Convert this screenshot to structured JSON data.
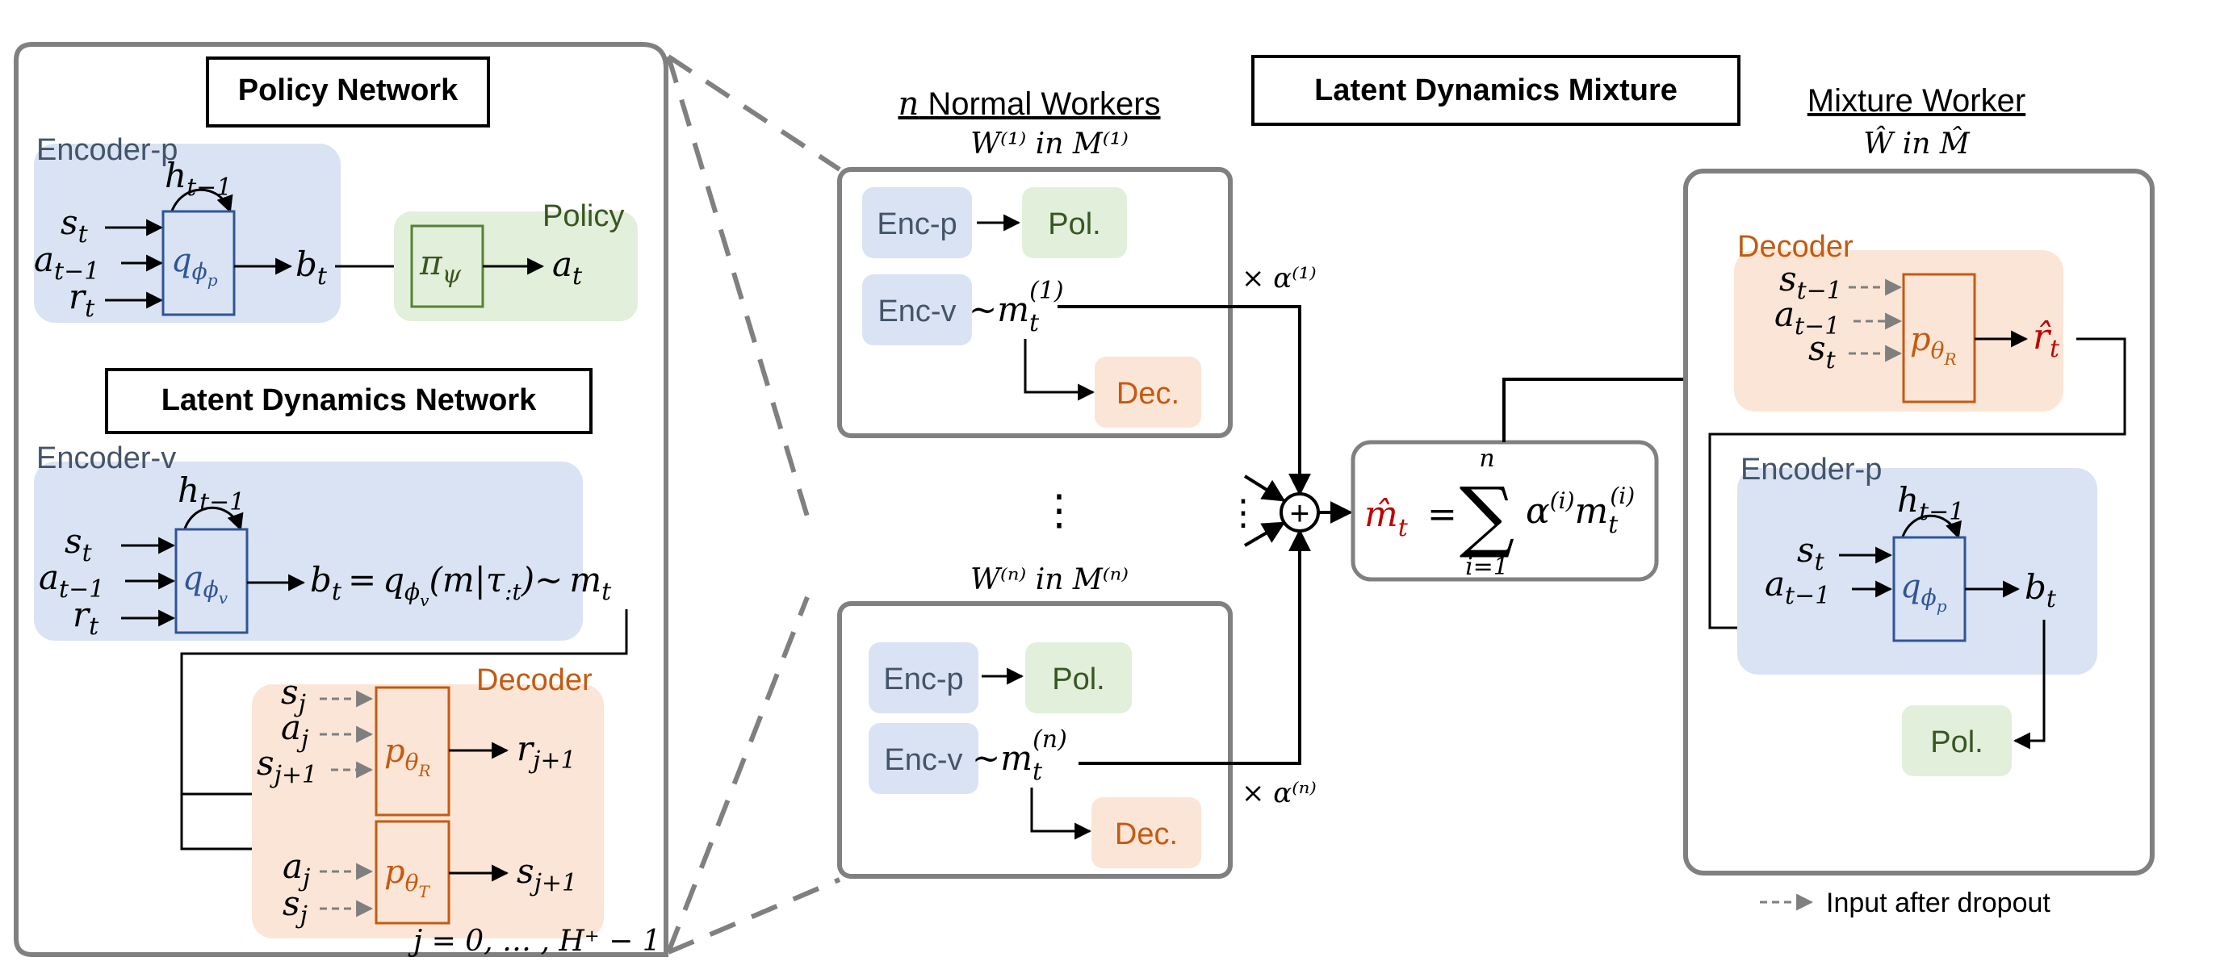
{
  "colors": {
    "blue_fill": "#dae3f3",
    "blue_text": "#44546a",
    "blue_stroke": "#2f5597",
    "green_fill": "#e2efda",
    "green_text": "#385723",
    "green_stroke": "#548235",
    "orange_fill": "#fbe5d6",
    "orange_text": "#c55a11",
    "red_text": "#c00000",
    "frame_gray": "#808080",
    "dash_gray": "#7f7f7f"
  },
  "left_panel": {
    "policy_network_title": "Policy Network",
    "encoder_p_label": "Encoder-p",
    "policy_label": "Policy",
    "latent_dynamics_title": "Latent Dynamics Network",
    "encoder_v_label": "Encoder-v",
    "decoder_label": "Decoder",
    "index_range": "j = 0, … , H⁺ − 1"
  },
  "math": {
    "h_prev": "h",
    "h_prev_sub": "t−1",
    "s": "s",
    "a": "a",
    "r": "r",
    "b": "b",
    "m": "m",
    "t": "t",
    "t_minus_1": "t−1",
    "q": "q",
    "phi_p": "ϕ",
    "phi_p_sub": "p",
    "phi_v_sub": "v",
    "pi": "π",
    "psi": "ψ",
    "belief_eq_mid": "(m|τ",
    "belief_eq_tau_sub": ":t",
    "belief_eq_end": ")~",
    "eq_sign": "=",
    "p": "p",
    "theta": "θ",
    "R": "R",
    "T": "T",
    "s_j": "s",
    "j": "j",
    "j_plus_1": "j+1",
    "tilde": "~"
  },
  "center": {
    "normal_workers_title": "n Normal Workers",
    "normal_workers_n": "n",
    "normal_workers_rest": " Normal Workers",
    "worker1_caption": "W⁽¹⁾ in M⁽¹⁾",
    "workern_caption": "W⁽ⁿ⁾ in M⁽ⁿ⁾",
    "enc_p": "Enc-p",
    "enc_v": "Enc-v",
    "pol": "Pol.",
    "dec": "Dec.",
    "m1_sup": "(1)",
    "mn_sup": "(n)",
    "alpha1": "× α⁽¹⁾",
    "alphan": "× α⁽ⁿ⁾",
    "ellipsis_vertical": "⋮",
    "plus_symbol": "+"
  },
  "mixture": {
    "mixture_title": "Latent Dynamics Mixture",
    "sum_lhs": "m̂",
    "sum_lhs_sub": "t",
    "sum_symbol": "∑",
    "sum_top": "n",
    "sum_bottom": "i=1",
    "sum_term": "α",
    "sum_term_sup": "(i)",
    "sum_term_m_sup": "(i)"
  },
  "right_panel": {
    "mixture_worker_title": "Mixture Worker",
    "caption": "Ŵ in M̂",
    "decoder_label": "Decoder",
    "encoder_p_label": "Encoder-p",
    "r_hat": "r̂",
    "pol": "Pol."
  },
  "legend": {
    "dropout_label": "Input after dropout"
  }
}
